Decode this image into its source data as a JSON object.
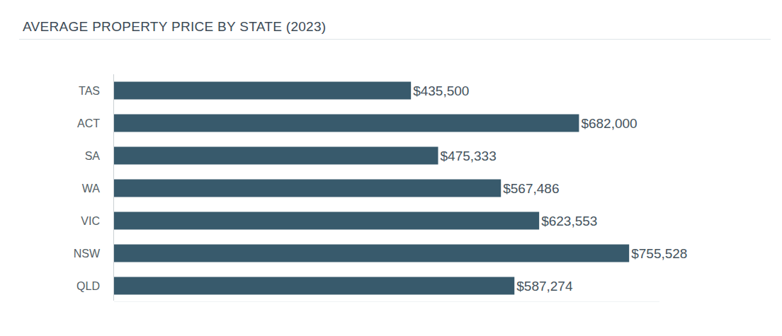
{
  "chart_data": {
    "type": "bar",
    "title": "AVERAGE PROPERTY PRICE BY STATE (2023)",
    "orientation": "horizontal",
    "categories": [
      "TAS",
      "ACT",
      "SA",
      "WA",
      "VIC",
      "NSW",
      "QLD"
    ],
    "values": [
      435500,
      682000,
      475333,
      567486,
      623553,
      755528,
      587274
    ],
    "value_labels": [
      "$435,500",
      "$682,000",
      "$475,333",
      "$567,486",
      "$623,553",
      "$755,528",
      "$587,274"
    ],
    "data_labels": true,
    "color": "#385a6c",
    "xlim": [
      0,
      800000
    ],
    "grid": false,
    "tick_labels": "y"
  }
}
